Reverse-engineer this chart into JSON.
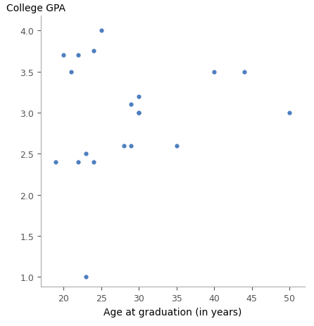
{
  "x": [
    19,
    20,
    21,
    22,
    23,
    23,
    24,
    25,
    28,
    29,
    30,
    30,
    35,
    40,
    44,
    50,
    22,
    24,
    29,
    30
  ],
  "y": [
    2.4,
    3.7,
    3.5,
    3.7,
    2.5,
    1.0,
    3.75,
    4.0,
    2.6,
    3.1,
    3.2,
    3.0,
    2.6,
    3.5,
    3.5,
    3.0,
    2.4,
    2.4,
    2.6,
    3.0
  ],
  "dot_color": "#4d7ebf",
  "dot_size": 12,
  "xlabel": "Age at graduation (in years)",
  "ylabel": "College GPA",
  "xlim": [
    17,
    52
  ],
  "ylim": [
    0.88,
    4.18
  ],
  "xticks": [
    20,
    25,
    30,
    35,
    40,
    45,
    50
  ],
  "yticks": [
    1.0,
    1.5,
    2.0,
    2.5,
    3.0,
    3.5,
    4.0
  ],
  "bg_color": "#ffffff",
  "label_fontsize": 10,
  "tick_fontsize": 9
}
